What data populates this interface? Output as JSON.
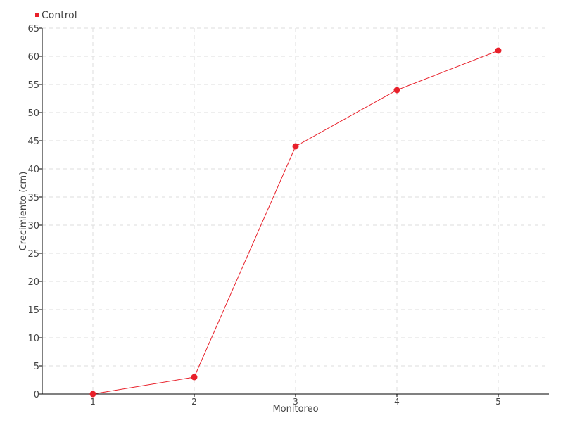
{
  "chart_data": {
    "type": "line",
    "title": "",
    "xlabel": "Monitoreo",
    "ylabel": "Crecimiento (cm)",
    "categories": [
      "1",
      "2",
      "3",
      "4",
      "5"
    ],
    "series": [
      {
        "name": "Control",
        "values": [
          0,
          3,
          44,
          54,
          61
        ],
        "color": "#e8202a"
      }
    ],
    "ylim": [
      0,
      65
    ],
    "yticks": [
      0,
      5,
      10,
      15,
      20,
      25,
      30,
      35,
      40,
      45,
      50,
      55,
      60,
      65
    ],
    "grid": true,
    "legend": "top-left"
  }
}
